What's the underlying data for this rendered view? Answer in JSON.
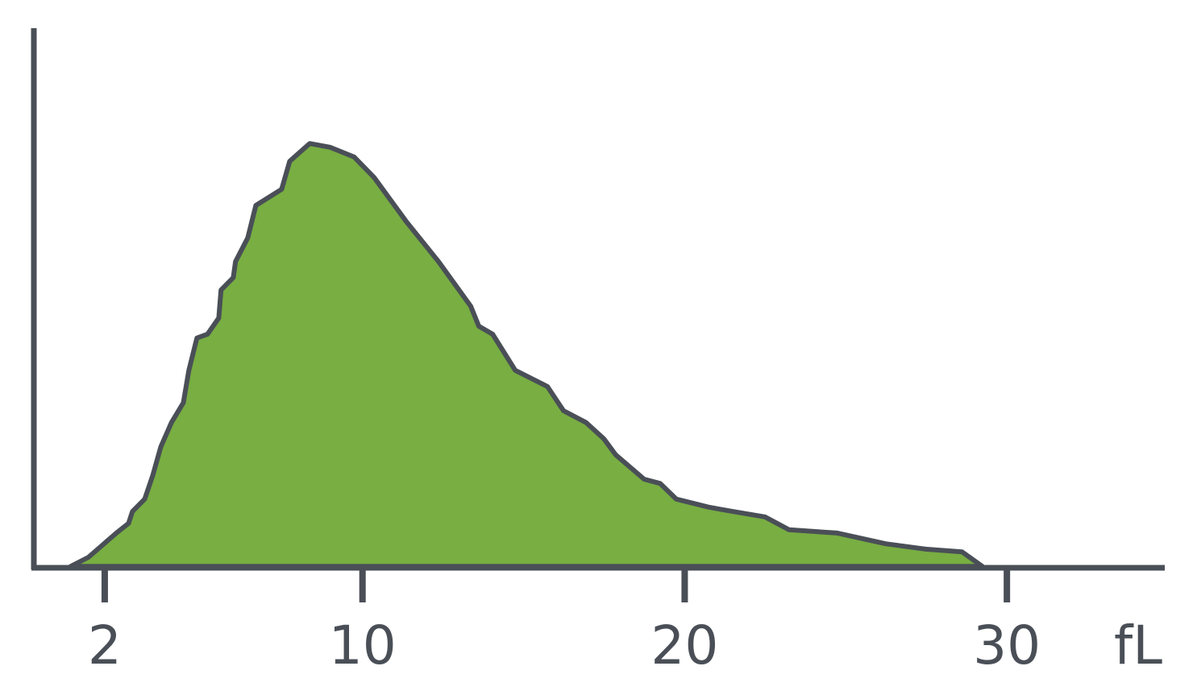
{
  "chart_data": {
    "type": "area",
    "x_label": "fL",
    "x": [
      0.94,
      1.49,
      2.36,
      2.74,
      2.86,
      3.24,
      3.49,
      3.74,
      4.07,
      4.44,
      4.61,
      4.86,
      5.19,
      5.54,
      5.61,
      5.99,
      6.06,
      6.44,
      6.69,
      7.49,
      7.74,
      8.36,
      8.99,
      9.74,
      10.36,
      11.36,
      12.36,
      13.36,
      13.61,
      14.04,
      14.74,
      15.74,
      16.24,
      16.94,
      17.49,
      17.86,
      18.74,
      19.24,
      19.74,
      20.74,
      21.49,
      22.49,
      23.24,
      24.74,
      26.24,
      27.49,
      28.61,
      29.24
    ],
    "values": [
      0.1,
      1.8,
      6.3,
      8.1,
      10.3,
      12.6,
      17.0,
      22.3,
      26.8,
      30.5,
      36.5,
      42.5,
      43.2,
      46.2,
      51.4,
      53.7,
      56.7,
      61.1,
      67.1,
      70.1,
      75.3,
      78.6,
      77.9,
      76.1,
      72.3,
      64.1,
      56.7,
      48.4,
      44.7,
      43.2,
      36.5,
      33.5,
      29.0,
      26.8,
      23.8,
      20.8,
      16.3,
      15.5,
      12.6,
      11.1,
      10.3,
      9.3,
      6.9,
      6.3,
      4.3,
      3.3,
      2.8,
      0.1
    ],
    "color": "#78ae42",
    "line_color": "#4a4f57",
    "xlim": [
      -0.2,
      34.9
    ],
    "xticks": [
      2,
      10,
      20,
      30
    ],
    "ylim": [
      0,
      100
    ]
  }
}
